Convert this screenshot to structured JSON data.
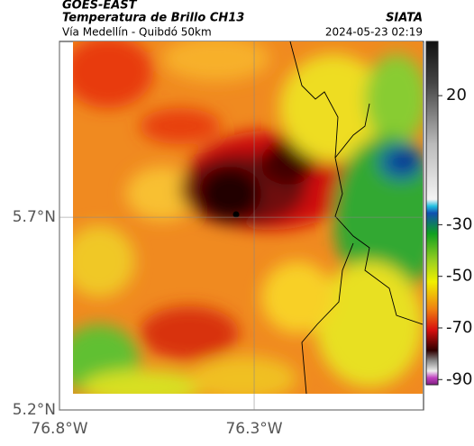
{
  "header": {
    "title": "GOES-EAST",
    "subtitle": "Temperatura de Brillo CH13",
    "region": "Vía Medellín - Quibdó 50km",
    "source": "SIATA",
    "datetime": "2024-05-23 02:19"
  },
  "map": {
    "lon_lim": [
      -76.8,
      -75.865
    ],
    "lat_lim": [
      5.2,
      6.156
    ],
    "lon_ticks": [
      {
        "value": -76.8,
        "label": "76.8°W"
      },
      {
        "value": -76.3,
        "label": "76.3°W"
      }
    ],
    "lat_ticks": [
      {
        "value": 5.7,
        "label": "5.7°N"
      },
      {
        "value": 5.2,
        "label": "5.2°N"
      }
    ]
  },
  "colorbar": {
    "lim": [
      -92,
      41
    ],
    "ticks": [
      20,
      -30,
      -50,
      -70,
      -90
    ]
  }
}
